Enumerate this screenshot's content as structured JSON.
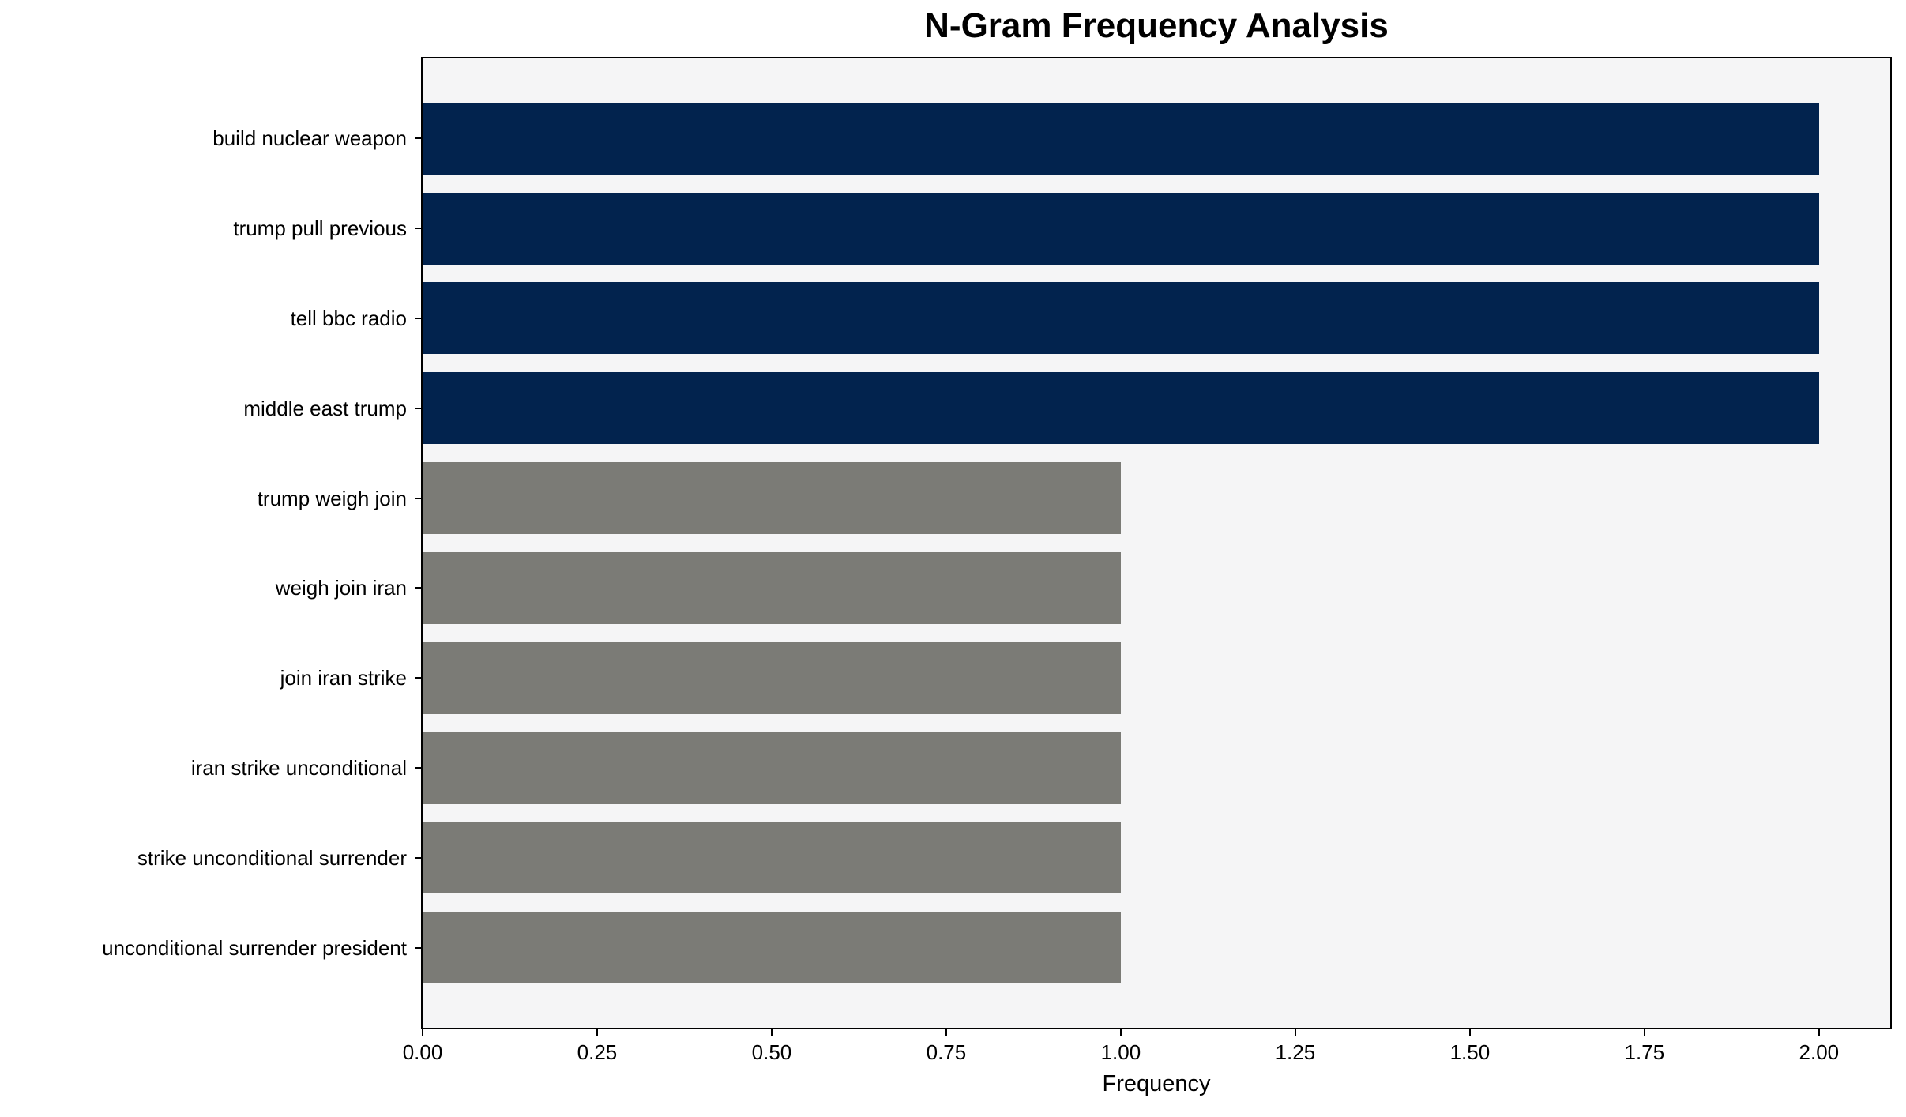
{
  "chart_data": {
    "type": "bar",
    "orientation": "horizontal",
    "title": "N-Gram Frequency Analysis",
    "xlabel": "Frequency",
    "ylabel": "",
    "categories": [
      "build nuclear weapon",
      "trump pull previous",
      "tell bbc radio",
      "middle east trump",
      "trump weigh join",
      "weigh join iran",
      "join iran strike",
      "iran strike unconditional",
      "strike unconditional surrender",
      "unconditional surrender president"
    ],
    "values": [
      2,
      2,
      2,
      2,
      1,
      1,
      1,
      1,
      1,
      1
    ],
    "bar_colors": [
      "#02234e",
      "#02234e",
      "#02234e",
      "#02234e",
      "#7b7b76",
      "#7b7b76",
      "#7b7b76",
      "#7b7b76",
      "#7b7b76",
      "#7b7b76"
    ],
    "xlim": [
      0,
      2.102
    ],
    "xtick_values": [
      0,
      0.25,
      0.5,
      0.75,
      1.0,
      1.25,
      1.5,
      1.75,
      2.0
    ],
    "xtick_labels": [
      "0.00",
      "0.25",
      "0.50",
      "0.75",
      "1.00",
      "1.25",
      "1.50",
      "1.75",
      "2.00"
    ],
    "grid": false,
    "legend": null,
    "colors": {
      "high_freq_bar": "#02234e",
      "low_freq_bar": "#7b7b76",
      "plot_background": "#f5f5f6",
      "axis": "#000000",
      "text": "#000000"
    }
  }
}
